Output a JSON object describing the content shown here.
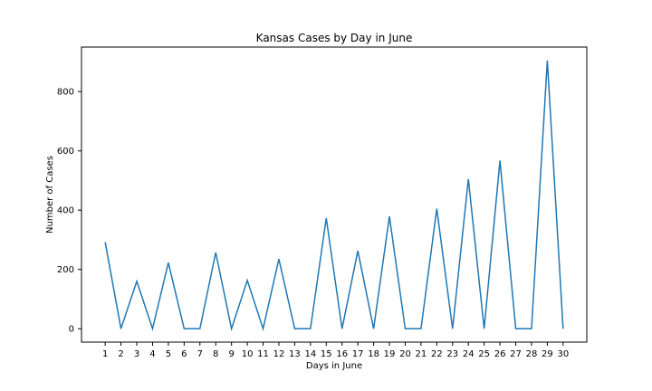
{
  "chart_data": {
    "type": "line",
    "title": "Kansas Cases by Day in June",
    "xlabel": "Days in June",
    "ylabel": "Number of Cases",
    "x": [
      1,
      2,
      3,
      4,
      5,
      6,
      7,
      8,
      9,
      10,
      11,
      12,
      13,
      14,
      15,
      16,
      17,
      18,
      19,
      20,
      21,
      22,
      23,
      24,
      25,
      26,
      27,
      28,
      29,
      30
    ],
    "series": [
      {
        "values": [
          292,
          0,
          160,
          0,
          223,
          0,
          0,
          257,
          0,
          163,
          0,
          235,
          0,
          0,
          373,
          0,
          263,
          0,
          379,
          0,
          0,
          405,
          0,
          505,
          0,
          567,
          0,
          0,
          905,
          0
        ],
        "color": "#1f77b4"
      }
    ],
    "xlim": [
      -0.5,
      31.5
    ],
    "ylim": [
      -45.25,
      950.25
    ],
    "yticks": [
      0,
      200,
      400,
      600,
      800
    ],
    "grid": false,
    "legend": "none"
  }
}
